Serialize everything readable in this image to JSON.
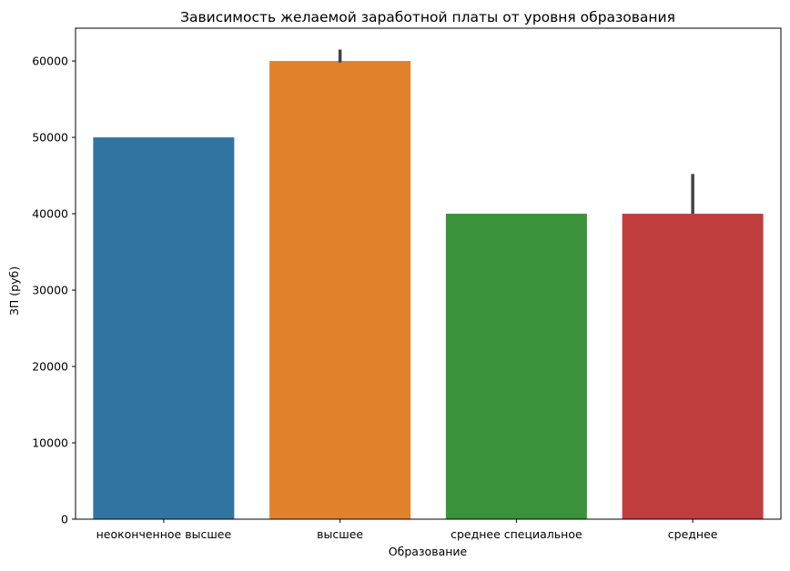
{
  "chart_data": {
    "type": "bar",
    "title": "Зависимость желаемой заработной платы  от уровня образования",
    "xlabel": "Образование",
    "ylabel": "ЗП (руб)",
    "categories": [
      "неоконченное высшее",
      "высшее",
      "среднее специальное",
      "среднее"
    ],
    "values": [
      50000,
      60000,
      40000,
      40000
    ],
    "error_bars": [
      {
        "low": 50000,
        "high": 50000
      },
      {
        "low": 59800,
        "high": 61500
      },
      {
        "low": 40000,
        "high": 40000
      },
      {
        "low": 40000,
        "high": 45200
      }
    ],
    "colors": [
      "#3274a1",
      "#e1812c",
      "#3a923a",
      "#c03d3e"
    ],
    "errorbar_color": "#424242",
    "ylim": [
      0,
      64300
    ],
    "yticks": [
      0,
      10000,
      20000,
      30000,
      40000,
      50000,
      60000
    ],
    "ytick_labels": [
      "0",
      "10000",
      "20000",
      "30000",
      "40000",
      "50000",
      "60000"
    ],
    "grid": false,
    "legend": "none"
  }
}
